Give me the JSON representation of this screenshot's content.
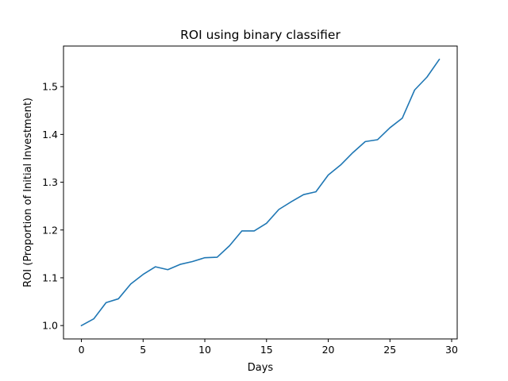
{
  "chart_data": {
    "type": "line",
    "title": "ROI using binary classifier",
    "xlabel": "Days",
    "ylabel": "ROI (Proportion of Initial Investment)",
    "xlim": [
      -1.45,
      30.45
    ],
    "ylim": [
      0.972,
      1.585
    ],
    "xticks": [
      0,
      5,
      10,
      15,
      20,
      25,
      30
    ],
    "yticks": [
      1.0,
      1.1,
      1.2,
      1.3,
      1.4,
      1.5
    ],
    "ytick_labels": [
      "1.0",
      "1.1",
      "1.2",
      "1.3",
      "1.4",
      "1.5"
    ],
    "grid": false,
    "series": [
      {
        "color": "#1f77b4",
        "x": [
          0,
          1,
          2,
          3,
          4,
          5,
          6,
          7,
          8,
          9,
          10,
          11,
          12,
          13,
          14,
          15,
          16,
          17,
          18,
          19,
          20,
          21,
          22,
          23,
          24,
          25,
          26,
          27,
          28,
          29
        ],
        "y": [
          1.0,
          1.014,
          1.048,
          1.056,
          1.087,
          1.107,
          1.123,
          1.117,
          1.128,
          1.134,
          1.142,
          1.143,
          1.167,
          1.198,
          1.198,
          1.214,
          1.243,
          1.259,
          1.274,
          1.28,
          1.315,
          1.336,
          1.362,
          1.385,
          1.389,
          1.414,
          1.434,
          1.493,
          1.52,
          1.557
        ]
      }
    ]
  }
}
